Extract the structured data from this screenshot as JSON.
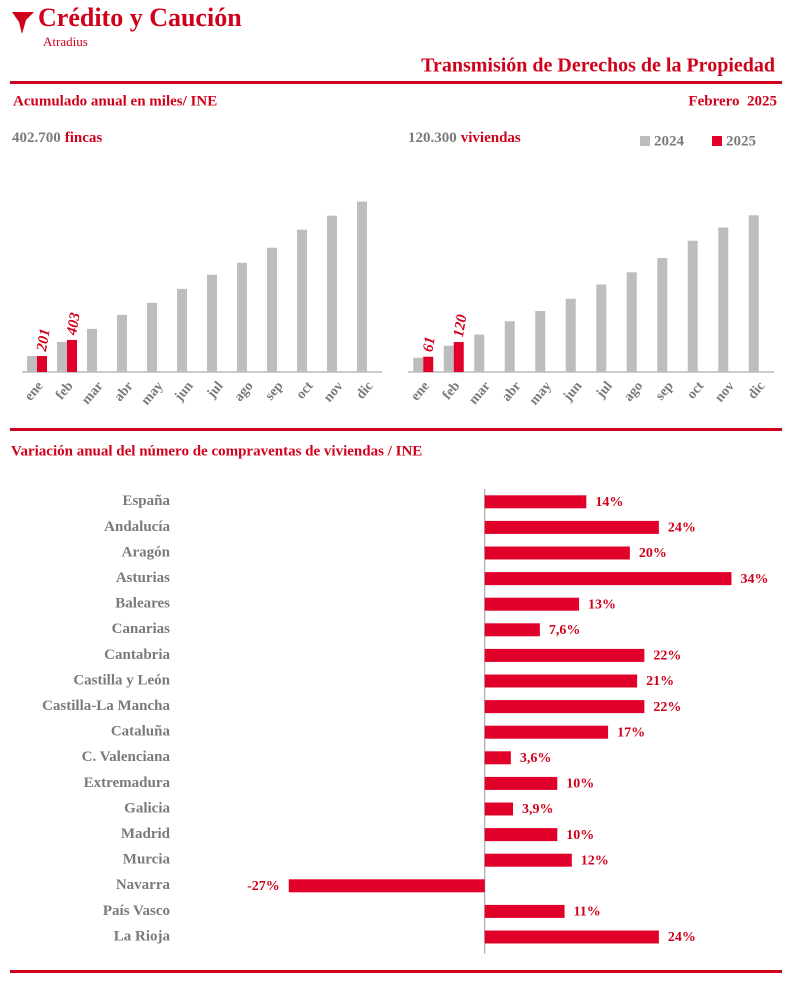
{
  "header": {
    "brand": "Crédito y Caución",
    "brand_sub": "Atradius",
    "title": "Transmisión de Derechos de la Propiedad",
    "subtitle": "Acumulado anual en miles/ INE",
    "date": "Febrero  2025"
  },
  "chart_data": [
    {
      "type": "bar",
      "orientation": "vertical",
      "total": "402.700",
      "unit": "fincas",
      "categories": [
        "ene",
        "feb",
        "mar",
        "abr",
        "may",
        "jun",
        "jul",
        "ago",
        "sep",
        "oct",
        "nov",
        "dic"
      ],
      "series": [
        {
          "color": "#bdbdbd",
          "values": [
            200,
            378,
            542,
            718,
            869,
            1045,
            1222,
            1373,
            1562,
            1789,
            1965,
            2142
          ]
        },
        {
          "color": "#e0002a",
          "values": [
            201,
            403,
            null,
            null,
            null,
            null,
            null,
            null,
            null,
            null,
            null,
            null
          ]
        }
      ],
      "ylim": [
        0,
        2200
      ]
    },
    {
      "type": "bar",
      "orientation": "vertical",
      "total": "120.300",
      "unit": "viviendas",
      "categories": [
        "ene",
        "feb",
        "mar",
        "abr",
        "may",
        "jun",
        "jul",
        "ago",
        "sep",
        "oct",
        "nov",
        "dic"
      ],
      "series": [
        {
          "name": "2024",
          "color": "#bdbdbd",
          "values": [
            57,
            105,
            150,
            203,
            244,
            293,
            350,
            399,
            456,
            525,
            578,
            627
          ]
        },
        {
          "name": "2025",
          "color": "#e0002a",
          "values": [
            61,
            120,
            null,
            null,
            null,
            null,
            null,
            null,
            null,
            null,
            null,
            null
          ]
        }
      ],
      "ylim": [
        0,
        700
      ]
    },
    {
      "type": "bar",
      "orientation": "horizontal",
      "title": "Variación anual del número de compraventas de viviendas / INE",
      "categories": [
        "España",
        "Andalucía",
        "Aragón",
        "Asturias",
        "Baleares",
        "Canarias",
        "Cantabria",
        "Castilla y León",
        "Castilla-La Mancha",
        "Cataluña",
        "C. Valenciana",
        "Extremadura",
        "Galicia",
        "Madrid",
        "Murcia",
        "Navarra",
        "País Vasco",
        "La Rioja"
      ],
      "values": [
        14,
        24,
        20,
        34,
        13,
        7.6,
        22,
        21,
        22,
        17,
        3.6,
        10,
        3.9,
        10,
        12,
        -27,
        11,
        24
      ],
      "value_labels": [
        "14%",
        "24%",
        "20%",
        "34%",
        "13%",
        "7,6%",
        "22%",
        "21%",
        "22%",
        "17%",
        "3,6%",
        "10%",
        "3,9%",
        "10%",
        "12%",
        "-27%",
        "11%",
        "24%"
      ],
      "color": "#e0002a",
      "xlim": [
        -30,
        40
      ]
    }
  ]
}
